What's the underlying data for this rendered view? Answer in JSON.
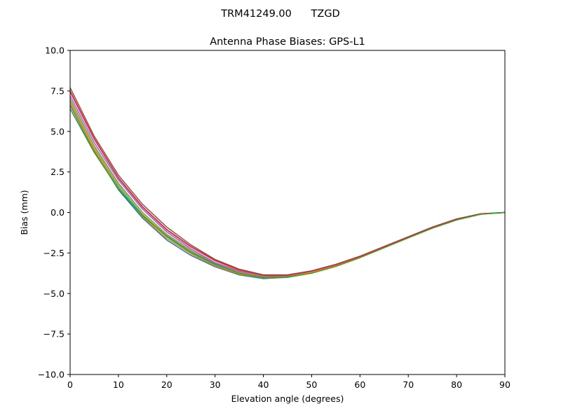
{
  "chart_data": {
    "type": "line",
    "suptitle": "TRM41249.00      TZGD",
    "title": "Antenna Phase Biases: GPS-L1",
    "xlabel": "Elevation angle (degrees)",
    "ylabel": "Bias (mm)",
    "xlim": [
      0,
      90
    ],
    "ylim": [
      -10,
      10
    ],
    "xticks": [
      0,
      10,
      20,
      30,
      40,
      50,
      60,
      70,
      80,
      90
    ],
    "xtick_labels": [
      "0",
      "10",
      "20",
      "30",
      "40",
      "50",
      "60",
      "70",
      "80",
      "90"
    ],
    "yticks": [
      -10,
      -7.5,
      -5,
      -2.5,
      0,
      2.5,
      5,
      7.5,
      10
    ],
    "ytick_labels": [
      "−10.0",
      "−7.5",
      "−5.0",
      "−2.5",
      "0.0",
      "2.5",
      "5.0",
      "7.5",
      "10.0"
    ],
    "grid": false,
    "legend": "none",
    "x": [
      0,
      5,
      10,
      15,
      20,
      25,
      30,
      35,
      40,
      45,
      50,
      55,
      60,
      65,
      70,
      75,
      80,
      85,
      90
    ],
    "series": [
      {
        "color": "#8c564b",
        "values": [
          7.7,
          4.7,
          2.3,
          0.5,
          -0.9,
          -2.0,
          -2.9,
          -3.5,
          -3.85,
          -3.85,
          -3.6,
          -3.2,
          -2.7,
          -2.1,
          -1.5,
          -0.9,
          -0.4,
          -0.08,
          0.0
        ]
      },
      {
        "color": "#e377c2",
        "values": [
          7.4,
          4.5,
          2.1,
          0.3,
          -1.1,
          -2.15,
          -3.0,
          -3.6,
          -3.9,
          -3.9,
          -3.65,
          -3.25,
          -2.72,
          -2.12,
          -1.52,
          -0.92,
          -0.42,
          -0.09,
          0.0
        ]
      },
      {
        "color": "#9467bd",
        "values": [
          7.2,
          4.3,
          2.0,
          0.2,
          -1.2,
          -2.25,
          -3.1,
          -3.65,
          -3.95,
          -3.92,
          -3.68,
          -3.27,
          -2.74,
          -2.14,
          -1.53,
          -0.93,
          -0.43,
          -0.09,
          0.0
        ]
      },
      {
        "color": "#7f7f7f",
        "values": [
          7.0,
          4.1,
          1.8,
          0.0,
          -1.35,
          -2.35,
          -3.15,
          -3.7,
          -3.98,
          -3.95,
          -3.7,
          -3.3,
          -2.76,
          -2.15,
          -1.54,
          -0.94,
          -0.44,
          -0.1,
          0.0
        ]
      },
      {
        "color": "#17becf",
        "values": [
          6.8,
          3.9,
          1.6,
          -0.15,
          -1.5,
          -2.5,
          -3.25,
          -3.8,
          -4.05,
          -4.0,
          -3.72,
          -3.3,
          -2.77,
          -2.16,
          -1.55,
          -0.95,
          -0.45,
          -0.1,
          0.0
        ]
      },
      {
        "color": "#bcbd22",
        "values": [
          6.9,
          4.0,
          1.7,
          -0.05,
          -1.4,
          -2.4,
          -3.2,
          -3.72,
          -3.98,
          -3.96,
          -3.7,
          -3.29,
          -2.76,
          -2.15,
          -1.54,
          -0.94,
          -0.44,
          -0.1,
          0.0
        ]
      },
      {
        "color": "#1f77b4",
        "values": [
          6.6,
          3.8,
          1.4,
          -0.35,
          -1.7,
          -2.65,
          -3.35,
          -3.85,
          -4.08,
          -4.0,
          -3.74,
          -3.32,
          -2.78,
          -2.17,
          -1.56,
          -0.96,
          -0.46,
          -0.11,
          0.0
        ]
      },
      {
        "color": "#ff7f0e",
        "values": [
          6.7,
          3.85,
          1.5,
          -0.25,
          -1.6,
          -2.55,
          -3.3,
          -3.8,
          -4.02,
          -3.98,
          -3.72,
          -3.3,
          -2.77,
          -2.16,
          -1.55,
          -0.95,
          -0.45,
          -0.1,
          0.0
        ]
      },
      {
        "color": "#d62728",
        "values": [
          7.5,
          4.55,
          2.15,
          0.35,
          -1.05,
          -2.1,
          -2.95,
          -3.55,
          -3.88,
          -3.88,
          -3.62,
          -3.22,
          -2.71,
          -2.11,
          -1.51,
          -0.91,
          -0.41,
          -0.08,
          0.0
        ]
      },
      {
        "color": "#2ca02c",
        "values": [
          6.4,
          3.7,
          1.45,
          -0.2,
          -1.45,
          -2.45,
          -3.2,
          -3.75,
          -4.0,
          -3.98,
          -3.75,
          -3.33,
          -2.79,
          -2.18,
          -1.57,
          -0.97,
          -0.46,
          -0.11,
          0.0
        ]
      }
    ]
  }
}
